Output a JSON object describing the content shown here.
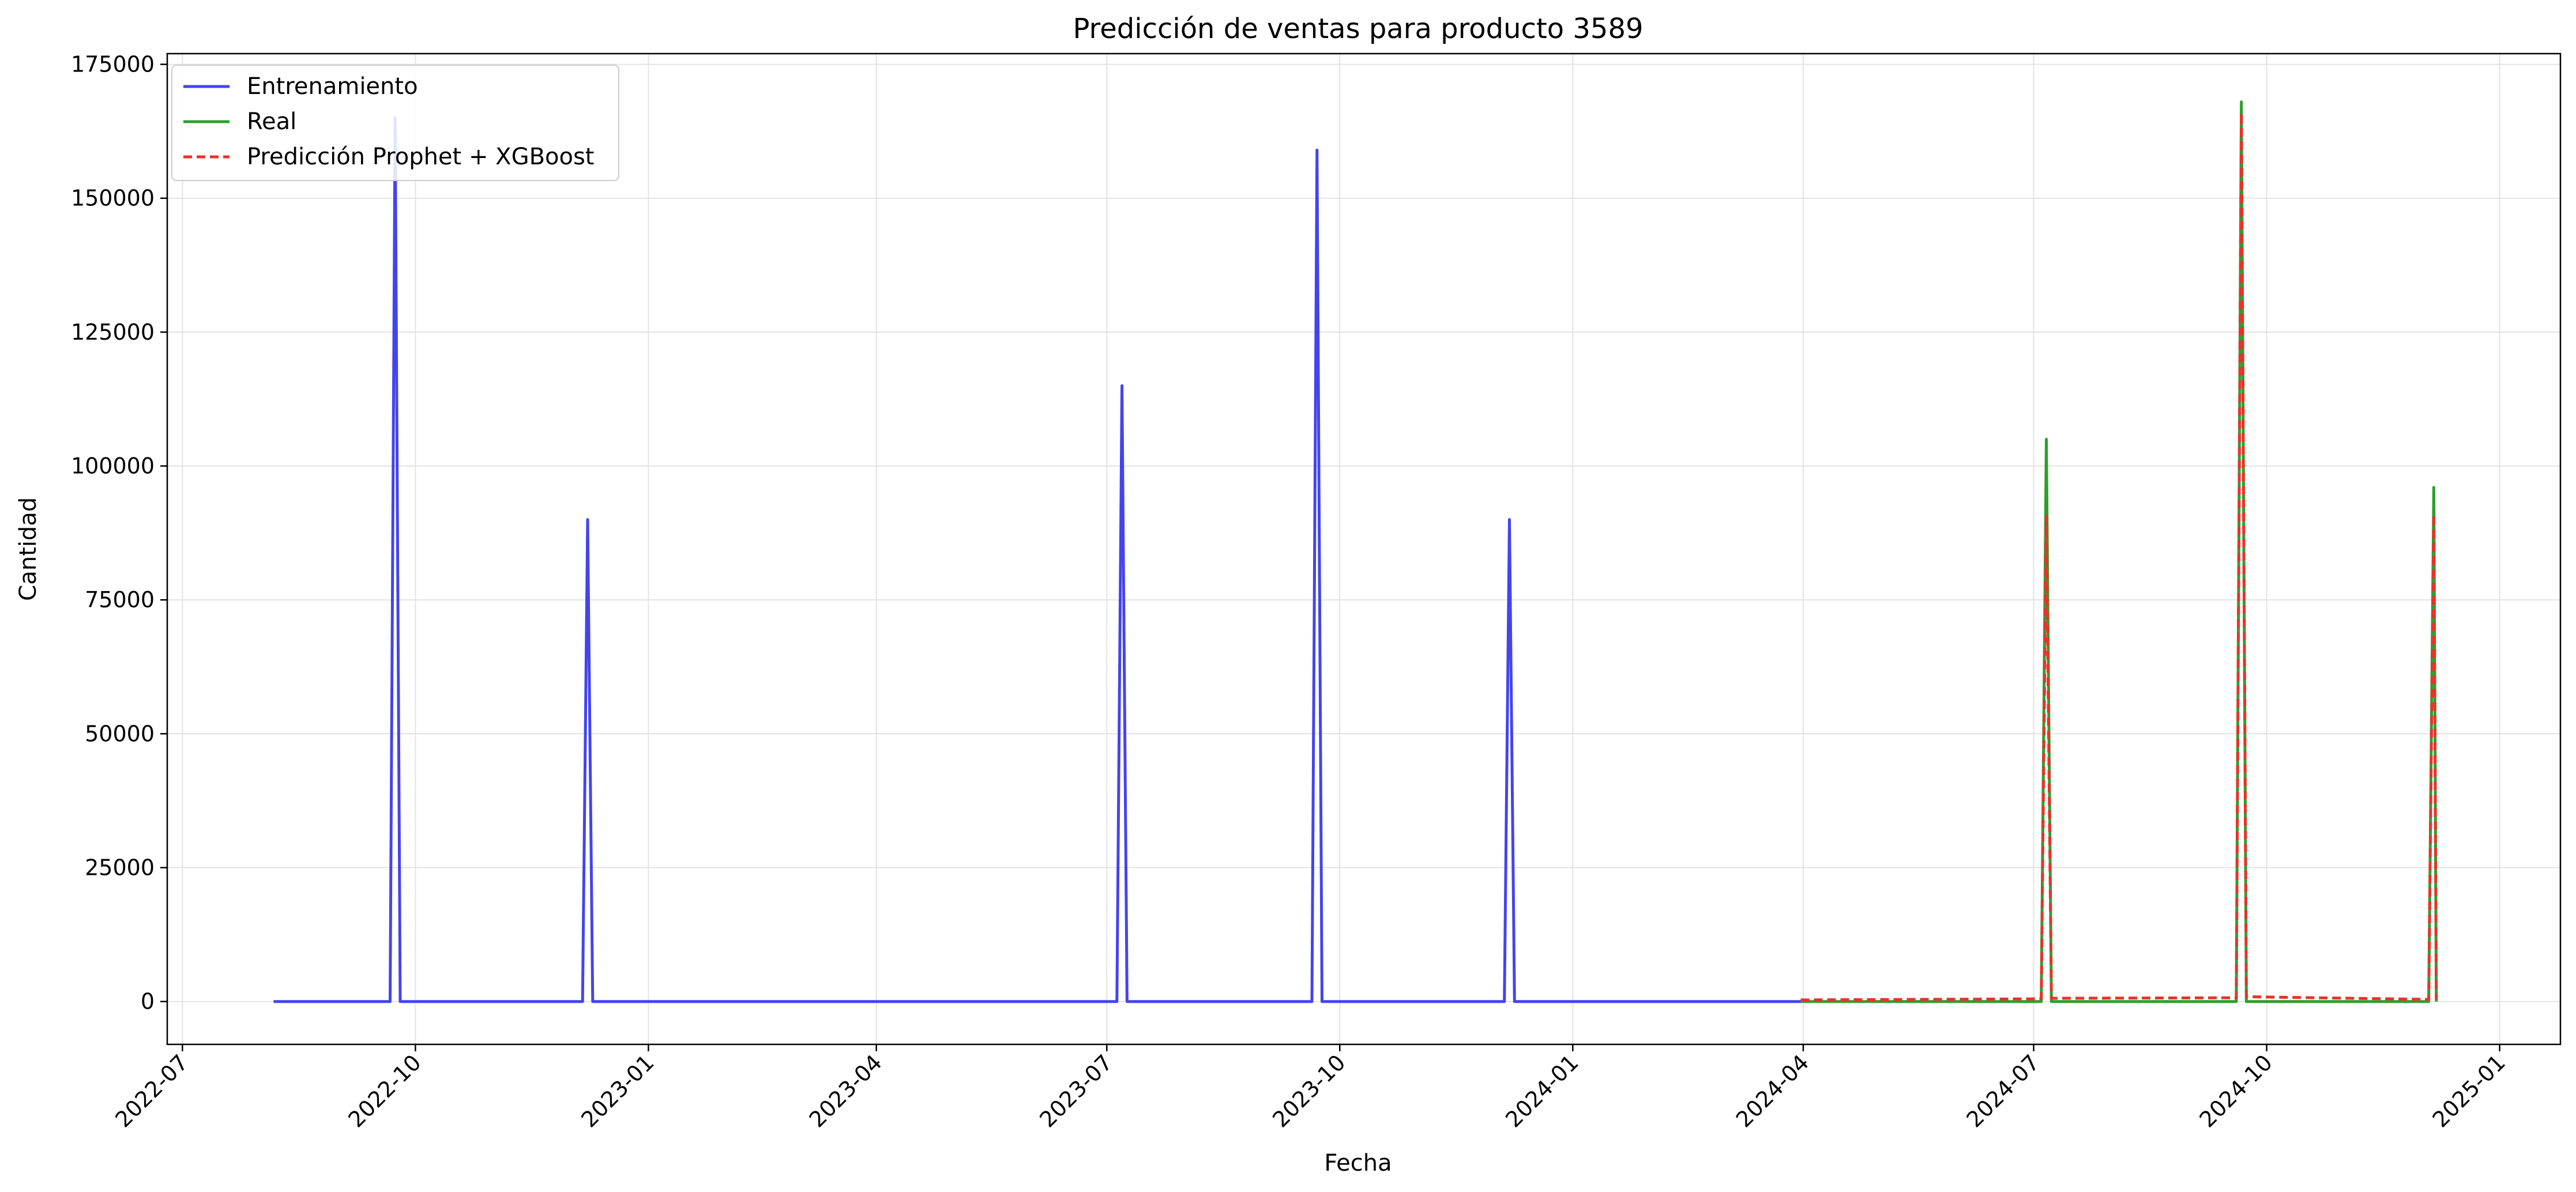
{
  "chart_data": {
    "type": "line",
    "title": "Predicción de ventas para producto 3589",
    "xlabel": "Fecha",
    "ylabel": "Cantidad",
    "x_axis": "date",
    "xlim": [
      "2022-06-25",
      "2025-01-25"
    ],
    "ylim": [
      -8000,
      177000
    ],
    "y_ticks": [
      0,
      25000,
      50000,
      75000,
      100000,
      125000,
      150000,
      175000
    ],
    "x_ticks": [
      "2022-07-01",
      "2022-10-01",
      "2023-01-01",
      "2023-04-01",
      "2023-07-01",
      "2023-10-01",
      "2024-01-01",
      "2024-04-01",
      "2024-07-01",
      "2024-10-01",
      "2025-01-01"
    ],
    "x_tick_labels": [
      "2022-07",
      "2022-10",
      "2023-01",
      "2023-04",
      "2023-07",
      "2023-10",
      "2024-01",
      "2024-04",
      "2024-07",
      "2024-10",
      "2025-01"
    ],
    "grid": true,
    "legend_position": "top-left",
    "series": [
      {
        "name": "Entrenamiento",
        "color": "#4444ee",
        "style": "solid",
        "points": [
          {
            "x": "2022-08-06",
            "y": 0
          },
          {
            "x": "2022-09-21",
            "y": 0
          },
          {
            "x": "2022-09-23",
            "y": 165000
          },
          {
            "x": "2022-09-25",
            "y": 0
          },
          {
            "x": "2022-12-06",
            "y": 0
          },
          {
            "x": "2022-12-08",
            "y": 90000
          },
          {
            "x": "2022-12-10",
            "y": 0
          },
          {
            "x": "2023-07-05",
            "y": 0
          },
          {
            "x": "2023-07-07",
            "y": 115000
          },
          {
            "x": "2023-07-09",
            "y": 0
          },
          {
            "x": "2023-09-20",
            "y": 0
          },
          {
            "x": "2023-09-22",
            "y": 159000
          },
          {
            "x": "2023-09-24",
            "y": 0
          },
          {
            "x": "2023-12-05",
            "y": 0
          },
          {
            "x": "2023-12-07",
            "y": 90000
          },
          {
            "x": "2023-12-09",
            "y": 0
          },
          {
            "x": "2024-03-31",
            "y": 0
          }
        ]
      },
      {
        "name": "Real",
        "color": "#2ca02c",
        "style": "solid",
        "points": [
          {
            "x": "2024-03-31",
            "y": 0
          },
          {
            "x": "2024-07-04",
            "y": 0
          },
          {
            "x": "2024-07-06",
            "y": 105000
          },
          {
            "x": "2024-07-08",
            "y": 0
          },
          {
            "x": "2024-09-19",
            "y": 0
          },
          {
            "x": "2024-09-21",
            "y": 168000
          },
          {
            "x": "2024-09-23",
            "y": 0
          },
          {
            "x": "2024-12-04",
            "y": 0
          },
          {
            "x": "2024-12-06",
            "y": 96000
          },
          {
            "x": "2024-12-07",
            "y": 0
          }
        ]
      },
      {
        "name": "Predicción Prophet + XGBoost",
        "color": "#e8332a",
        "style": "dashed",
        "points": [
          {
            "x": "2024-03-31",
            "y": 300
          },
          {
            "x": "2024-07-04",
            "y": 500
          },
          {
            "x": "2024-07-06",
            "y": 91000
          },
          {
            "x": "2024-07-08",
            "y": 600
          },
          {
            "x": "2024-09-19",
            "y": 700
          },
          {
            "x": "2024-09-21",
            "y": 166000
          },
          {
            "x": "2024-09-23",
            "y": 900
          },
          {
            "x": "2024-12-04",
            "y": 400
          },
          {
            "x": "2024-12-06",
            "y": 91000
          },
          {
            "x": "2024-12-07",
            "y": 300
          }
        ]
      }
    ]
  }
}
